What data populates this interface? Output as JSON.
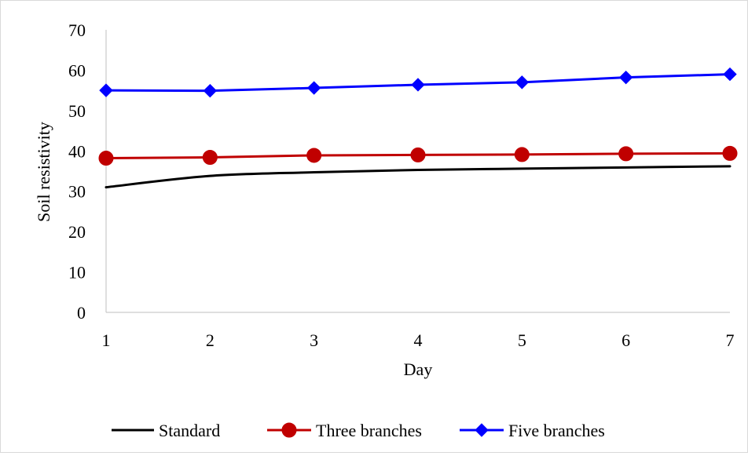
{
  "chart_data": {
    "type": "line",
    "title": "",
    "xlabel": "Day",
    "ylabel": "Soil resistivity",
    "x": [
      1,
      2,
      3,
      4,
      5,
      6,
      7
    ],
    "x_tick_labels": [
      "1",
      "2",
      "3",
      "4",
      "5",
      "6",
      "7"
    ],
    "ylim": [
      0,
      70
    ],
    "y_ticks": [
      0,
      10,
      20,
      30,
      40,
      50,
      60,
      70
    ],
    "y_tick_labels": [
      "0",
      "10",
      "20",
      "30",
      "40",
      "50",
      "60",
      "70"
    ],
    "grid": false,
    "legend_position": "bottom",
    "series": [
      {
        "name": "Standard",
        "color": "#000000",
        "marker": "none",
        "smooth": true,
        "values": [
          31.0,
          33.8,
          34.7,
          35.3,
          35.6,
          35.9,
          36.2
        ]
      },
      {
        "name": "Three branches",
        "color": "#c00000",
        "marker": "circle",
        "values": [
          38.2,
          38.4,
          38.9,
          39.0,
          39.1,
          39.3,
          39.4
        ]
      },
      {
        "name": "Five branches",
        "color": "#0000ff",
        "marker": "diamond",
        "values": [
          55.0,
          54.9,
          55.6,
          56.4,
          57.0,
          58.2,
          59.0
        ]
      }
    ]
  }
}
